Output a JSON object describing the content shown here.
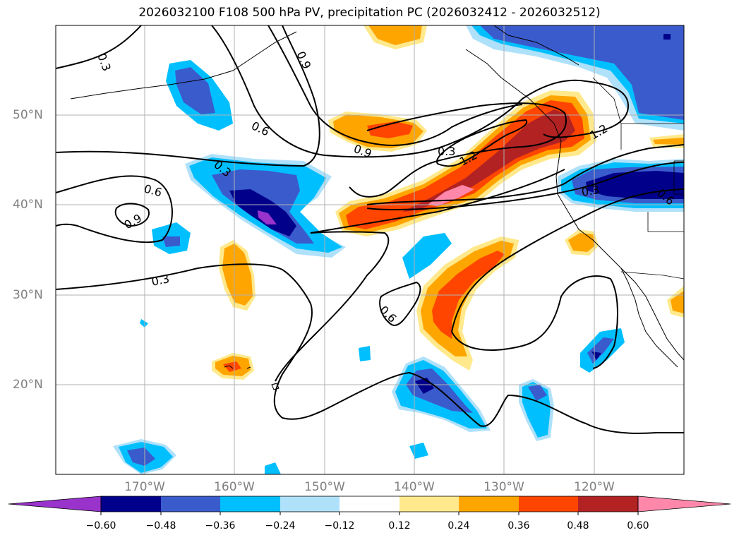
{
  "title": "2026032100 F108 500 hPa PV, precipitation PC (2026032412 - 2026032512)",
  "map": {
    "lon_range": [
      -180,
      -110
    ],
    "lat_range": [
      10,
      60
    ],
    "lat_ticks": [
      {
        "value": 20,
        "label": "20°N"
      },
      {
        "value": 30,
        "label": "30°N"
      },
      {
        "value": 40,
        "label": "40°N"
      },
      {
        "value": 50,
        "label": "50°N"
      }
    ],
    "lon_ticks": [
      {
        "value": -170,
        "label": "170°W"
      },
      {
        "value": -160,
        "label": "160°W"
      },
      {
        "value": -150,
        "label": "150°W"
      },
      {
        "value": -140,
        "label": "140°W"
      },
      {
        "value": -130,
        "label": "130°W"
      },
      {
        "value": -120,
        "label": "120°W"
      }
    ],
    "pv_contour_labels": [
      "0.3",
      "0.6",
      "0.9",
      "1.2",
      "0.3",
      "0.6",
      "0.9",
      "0.3",
      "0.6",
      "0.9",
      "1.2",
      "0.3",
      "0.6",
      "0.3"
    ]
  },
  "colorbar": {
    "levels": [
      "−0.60",
      "−0.48",
      "−0.36",
      "−0.24",
      "−0.12",
      "0.12",
      "0.24",
      "0.36",
      "0.48",
      "0.60"
    ],
    "colors": [
      "#9933cc",
      "#00008b",
      "#3a5bcc",
      "#00bfff",
      "#afe1fa",
      "#ffffff",
      "#ffe98c",
      "#ffa500",
      "#ff4500",
      "#b22222",
      "#ff88aa"
    ]
  }
}
